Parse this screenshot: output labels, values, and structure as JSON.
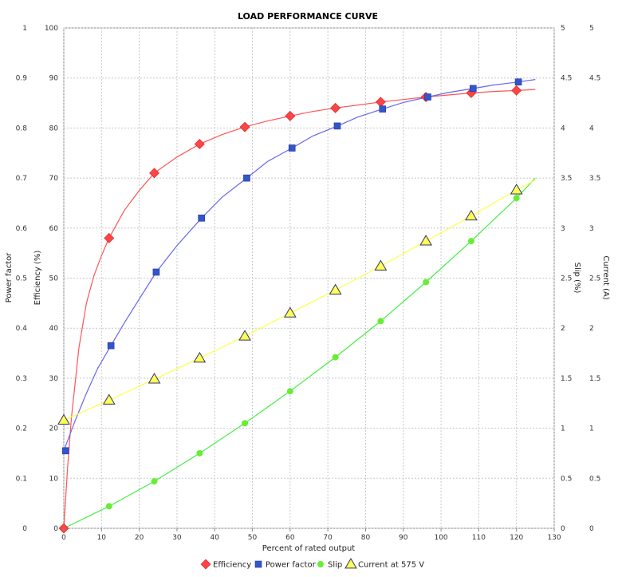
{
  "chart_data": {
    "type": "scatter",
    "title": "LOAD PERFORMANCE CURVE",
    "xlabel": "Percent of rated output",
    "xlim": [
      0,
      130
    ],
    "x_ticks": [
      0,
      10,
      20,
      30,
      40,
      50,
      60,
      70,
      80,
      90,
      100,
      110,
      120,
      130
    ],
    "grid": true,
    "legend_placement": "bottom",
    "axes": {
      "power_factor": {
        "label": "Power factor",
        "side": "left",
        "lim": [
          0,
          1
        ],
        "ticks": [
          "0",
          "0.1",
          "0.2",
          "0.3",
          "0.4",
          "0.5",
          "0.6",
          "0.7",
          "0.8",
          "0.9",
          "1"
        ]
      },
      "efficiency": {
        "label": "Efficiency (%)",
        "side": "left",
        "lim": [
          0,
          100
        ],
        "ticks": [
          "0",
          "10",
          "20",
          "30",
          "40",
          "50",
          "60",
          "70",
          "80",
          "90",
          "100"
        ]
      },
      "slip": {
        "label": "Slip (%)",
        "side": "right",
        "lim": [
          0,
          5
        ],
        "ticks": [
          "0",
          "0.5",
          "1",
          "1.5",
          "2",
          "2.5",
          "3",
          "3.5",
          "4",
          "4.5",
          "5"
        ]
      },
      "current": {
        "label": "Current (A)",
        "side": "right",
        "lim": [
          0,
          5
        ],
        "ticks": [
          "0",
          "0.5",
          "1",
          "1.5",
          "2",
          "2.5",
          "3",
          "3.5",
          "4",
          "4.5",
          "5"
        ]
      }
    },
    "series": [
      {
        "name": "Efficiency",
        "axis": "efficiency",
        "color": "#ff4444",
        "line_color": "#ff5555",
        "marker": "diamond",
        "points": [
          [
            0,
            0
          ],
          [
            12,
            58
          ],
          [
            24,
            71
          ],
          [
            36,
            76.8
          ],
          [
            48,
            80.2
          ],
          [
            60,
            82.4
          ],
          [
            72,
            84
          ],
          [
            84,
            85.2
          ],
          [
            96,
            86.2
          ],
          [
            108,
            87
          ],
          [
            120,
            87.5
          ]
        ],
        "curve": [
          [
            0,
            0
          ],
          [
            1,
            12
          ],
          [
            2,
            22
          ],
          [
            4,
            36
          ],
          [
            6,
            45
          ],
          [
            8,
            50.5
          ],
          [
            10,
            54.5
          ],
          [
            12,
            58
          ],
          [
            16,
            63.5
          ],
          [
            20,
            67.5
          ],
          [
            24,
            71
          ],
          [
            30,
            74.2
          ],
          [
            36,
            76.8
          ],
          [
            42,
            78.7
          ],
          [
            48,
            80.2
          ],
          [
            54,
            81.4
          ],
          [
            60,
            82.4
          ],
          [
            66,
            83.3
          ],
          [
            72,
            84
          ],
          [
            78,
            84.6
          ],
          [
            84,
            85.2
          ],
          [
            90,
            85.7
          ],
          [
            96,
            86.2
          ],
          [
            102,
            86.6
          ],
          [
            108,
            87
          ],
          [
            114,
            87.3
          ],
          [
            120,
            87.5
          ],
          [
            125,
            87.7
          ]
        ]
      },
      {
        "name": "Power factor",
        "axis": "power_factor",
        "color": "#3355cc",
        "line_color": "#6666ee",
        "marker": "square",
        "points": [
          [
            0.5,
            0.155
          ],
          [
            12.5,
            0.365
          ],
          [
            24.5,
            0.512
          ],
          [
            36.5,
            0.62
          ],
          [
            48.5,
            0.7
          ],
          [
            60.5,
            0.76
          ],
          [
            72.5,
            0.804
          ],
          [
            84.5,
            0.838
          ],
          [
            96.5,
            0.862
          ],
          [
            108.5,
            0.879
          ],
          [
            120.5,
            0.892
          ]
        ],
        "curve": [
          [
            0,
            0.155
          ],
          [
            3,
            0.215
          ],
          [
            6,
            0.27
          ],
          [
            9,
            0.32
          ],
          [
            12.5,
            0.365
          ],
          [
            16,
            0.41
          ],
          [
            20,
            0.458
          ],
          [
            24.5,
            0.512
          ],
          [
            30,
            0.565
          ],
          [
            36.5,
            0.62
          ],
          [
            42,
            0.662
          ],
          [
            48.5,
            0.7
          ],
          [
            54,
            0.733
          ],
          [
            60.5,
            0.76
          ],
          [
            66,
            0.784
          ],
          [
            72.5,
            0.804
          ],
          [
            78,
            0.822
          ],
          [
            84.5,
            0.838
          ],
          [
            90,
            0.851
          ],
          [
            96.5,
            0.862
          ],
          [
            102,
            0.871
          ],
          [
            108.5,
            0.879
          ],
          [
            114,
            0.886
          ],
          [
            120.5,
            0.892
          ],
          [
            125,
            0.897
          ]
        ]
      },
      {
        "name": "Slip",
        "axis": "slip",
        "color": "#66ee33",
        "line_color": "#44ee44",
        "marker": "circle",
        "points": [
          [
            12,
            0.22
          ],
          [
            24,
            0.47
          ],
          [
            36,
            0.75
          ],
          [
            48,
            1.05
          ],
          [
            60,
            1.37
          ],
          [
            72,
            1.71
          ],
          [
            84,
            2.07
          ],
          [
            96,
            2.46
          ],
          [
            108,
            2.87
          ],
          [
            120,
            3.3
          ]
        ],
        "curve": [
          [
            0,
            0
          ],
          [
            12,
            0.22
          ],
          [
            24,
            0.47
          ],
          [
            36,
            0.75
          ],
          [
            48,
            1.05
          ],
          [
            60,
            1.37
          ],
          [
            72,
            1.71
          ],
          [
            84,
            2.07
          ],
          [
            96,
            2.46
          ],
          [
            108,
            2.87
          ],
          [
            120,
            3.3
          ],
          [
            125,
            3.5
          ]
        ]
      },
      {
        "name": "Current at 575 V",
        "axis": "current",
        "color": "#ffff55",
        "line_color": "#ffff44",
        "marker": "triangle",
        "points": [
          [
            0,
            1.08
          ],
          [
            12,
            1.28
          ],
          [
            24,
            1.49
          ],
          [
            36,
            1.7
          ],
          [
            48,
            1.92
          ],
          [
            60,
            2.15
          ],
          [
            72,
            2.38
          ],
          [
            84,
            2.62
          ],
          [
            96,
            2.87
          ],
          [
            108,
            3.12
          ],
          [
            120,
            3.38
          ]
        ],
        "curve": [
          [
            0,
            1.08
          ],
          [
            12,
            1.28
          ],
          [
            24,
            1.49
          ],
          [
            36,
            1.7
          ],
          [
            48,
            1.92
          ],
          [
            60,
            2.15
          ],
          [
            72,
            2.38
          ],
          [
            84,
            2.62
          ],
          [
            96,
            2.87
          ],
          [
            108,
            3.12
          ],
          [
            120,
            3.38
          ],
          [
            125,
            3.48
          ]
        ]
      }
    ]
  }
}
